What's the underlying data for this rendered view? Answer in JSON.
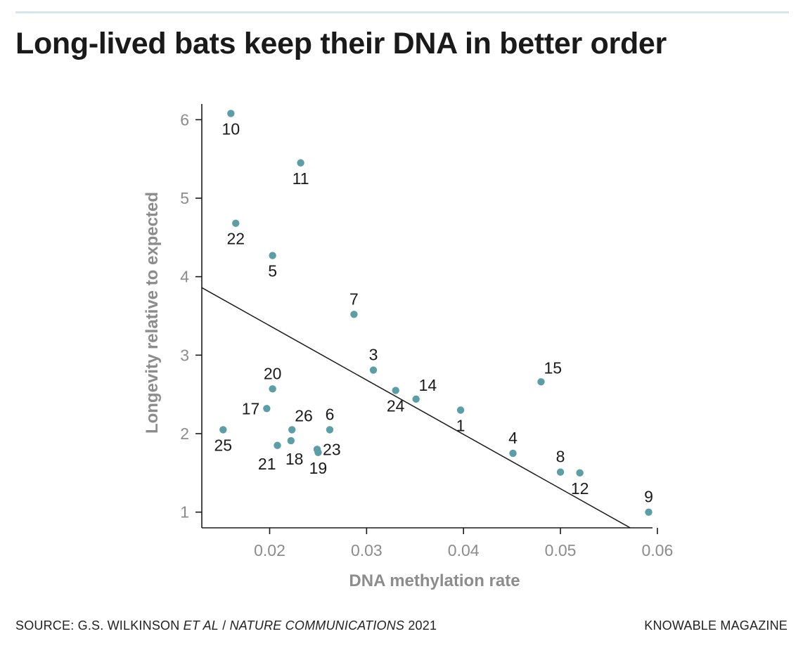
{
  "title": "Long-lived bats keep their DNA in better order",
  "footer": {
    "source_prefix": "SOURCE: G.S. WILKINSON ",
    "source_italic_1": "ET AL",
    "source_sep": " / ",
    "source_italic_2": "NATURE COMMUNICATIONS",
    "source_year": " 2021",
    "credit": "KNOWABLE MAGAZINE"
  },
  "colors": {
    "point": "#5b9ea6",
    "axis": "#1a1a1a",
    "tick_label": "#8c8c8c",
    "axis_title": "#8c8c8c"
  },
  "chart_data": {
    "type": "scatter",
    "title": "Long-lived bats keep their DNA in better order",
    "xlabel": "DNA methylation rate",
    "ylabel": "Longevity relative to expected",
    "xlim": [
      0.013,
      0.0595
    ],
    "ylim": [
      0.8,
      6.2
    ],
    "xticks": [
      0.02,
      0.03,
      0.04,
      0.05,
      0.06
    ],
    "xtick_labels": [
      "0.02",
      "0.03",
      "0.04",
      "0.05",
      "0.06"
    ],
    "yticks": [
      1,
      2,
      3,
      4,
      5,
      6
    ],
    "ytick_labels": [
      "1",
      "2",
      "3",
      "4",
      "5",
      "6"
    ],
    "grid": false,
    "points": [
      {
        "label": "10",
        "x": 0.016,
        "y": 6.08,
        "label_pos": "below"
      },
      {
        "label": "11",
        "x": 0.0232,
        "y": 5.45,
        "label_pos": "below"
      },
      {
        "label": "22",
        "x": 0.0165,
        "y": 4.68,
        "label_pos": "below"
      },
      {
        "label": "5",
        "x": 0.0203,
        "y": 4.27,
        "label_pos": "below"
      },
      {
        "label": "7",
        "x": 0.0287,
        "y": 3.52,
        "label_pos": "above"
      },
      {
        "label": "3",
        "x": 0.0307,
        "y": 2.81,
        "label_pos": "above"
      },
      {
        "label": "20",
        "x": 0.0203,
        "y": 2.57,
        "label_pos": "above"
      },
      {
        "label": "24",
        "x": 0.033,
        "y": 2.55,
        "label_pos": "below"
      },
      {
        "label": "14",
        "x": 0.0351,
        "y": 2.44,
        "label_pos": "above-right"
      },
      {
        "label": "1",
        "x": 0.0397,
        "y": 2.3,
        "label_pos": "below"
      },
      {
        "label": "15",
        "x": 0.048,
        "y": 2.66,
        "label_pos": "above-right"
      },
      {
        "label": "17",
        "x": 0.0197,
        "y": 2.32,
        "label_pos": "left"
      },
      {
        "label": "26",
        "x": 0.0223,
        "y": 2.05,
        "label_pos": "above-right"
      },
      {
        "label": "6",
        "x": 0.0262,
        "y": 2.05,
        "label_pos": "above"
      },
      {
        "label": "25",
        "x": 0.0152,
        "y": 2.05,
        "label_pos": "below"
      },
      {
        "label": "18",
        "x": 0.0222,
        "y": 1.91,
        "label_pos": "below-right"
      },
      {
        "label": "21",
        "x": 0.0208,
        "y": 1.85,
        "label_pos": "below-left"
      },
      {
        "label": "23",
        "x": 0.0249,
        "y": 1.8,
        "label_pos": "right"
      },
      {
        "label": "19",
        "x": 0.025,
        "y": 1.76,
        "label_pos": "below"
      },
      {
        "label": "4",
        "x": 0.0451,
        "y": 1.75,
        "label_pos": "above"
      },
      {
        "label": "8",
        "x": 0.05,
        "y": 1.51,
        "label_pos": "above"
      },
      {
        "label": "12",
        "x": 0.052,
        "y": 1.5,
        "label_pos": "below"
      },
      {
        "label": "9",
        "x": 0.0591,
        "y": 1.0,
        "label_pos": "above"
      }
    ],
    "fit_line": {
      "x": [
        0.013,
        0.0572
      ],
      "y": [
        3.86,
        0.8
      ]
    }
  }
}
